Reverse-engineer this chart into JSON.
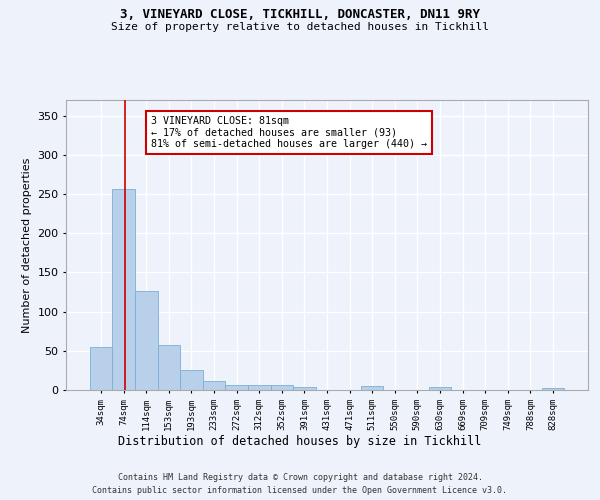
{
  "title1": "3, VINEYARD CLOSE, TICKHILL, DONCASTER, DN11 9RY",
  "title2": "Size of property relative to detached houses in Tickhill",
  "xlabel": "Distribution of detached houses by size in Tickhill",
  "ylabel": "Number of detached properties",
  "footer1": "Contains HM Land Registry data © Crown copyright and database right 2024.",
  "footer2": "Contains public sector information licensed under the Open Government Licence v3.0.",
  "annotation_line1": "3 VINEYARD CLOSE: 81sqm",
  "annotation_line2": "← 17% of detached houses are smaller (93)",
  "annotation_line3": "81% of semi-detached houses are larger (440) →",
  "bar_color": "#b8d0ea",
  "bar_edge_color": "#7aafd4",
  "ref_line_color": "#cc0000",
  "annotation_box_edge": "#cc0000",
  "background_color": "#eef2fb",
  "grid_color": "#ffffff",
  "categories": [
    "34sqm",
    "74sqm",
    "114sqm",
    "153sqm",
    "193sqm",
    "233sqm",
    "272sqm",
    "312sqm",
    "352sqm",
    "391sqm",
    "431sqm",
    "471sqm",
    "511sqm",
    "550sqm",
    "590sqm",
    "630sqm",
    "669sqm",
    "709sqm",
    "749sqm",
    "788sqm",
    "828sqm"
  ],
  "values": [
    55,
    257,
    126,
    57,
    26,
    12,
    6,
    6,
    6,
    4,
    0,
    0,
    5,
    0,
    0,
    4,
    0,
    0,
    0,
    0,
    3
  ],
  "ref_line_x": 1.08,
  "ylim": [
    0,
    370
  ],
  "yticks": [
    0,
    50,
    100,
    150,
    200,
    250,
    300,
    350
  ]
}
